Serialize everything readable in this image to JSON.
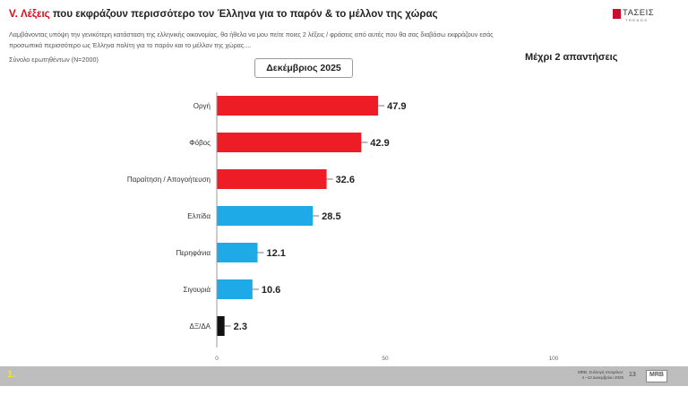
{
  "header": {
    "title_prefix": "V. Λέξεις",
    "title_rest": " που εκφράζουν περισσότερο τον Έλληνα για το παρόν & το μέλλον της χώρας",
    "description": "Λαμβάνοντας υπόψη την γενικότερη κατάσταση της ελληνικής οικονομίας, θα ήθελα να μου πείτε ποιες 2  λέξεις / φράσεις από αυτές που θα σας διαβάσω εκφράζουν εσάς προσωπικά περισσότερο ως Έλληνα πολίτη για το παρόν και το μέλλον της χώρας....",
    "sample": "Σύνολο ερωτηθέντων (Ν=2000)",
    "logo_text": "ΤΑΣΕΙΣ",
    "logo_sub": "TRENDS"
  },
  "period_label": "Δεκέμβριος 2025",
  "max_answers": "Μέχρι 2 απαντήσεις",
  "chart_data": {
    "type": "bar",
    "orientation": "horizontal",
    "categories": [
      "Οργή",
      "Φόβος",
      "Παραίτηση / Απογοήτευση",
      "Ελπίδα",
      "Περηφάνια",
      "Σιγουριά",
      "ΔΞ/ΔΑ"
    ],
    "values": [
      47.9,
      42.9,
      32.6,
      28.5,
      12.1,
      10.6,
      2.3
    ],
    "colors": [
      "#ee1c25",
      "#ee1c25",
      "#ee1c25",
      "#1eaae7",
      "#1eaae7",
      "#1eaae7",
      "#111111"
    ],
    "xlim": [
      0,
      100
    ],
    "xticks": [
      0,
      50,
      100
    ],
    "grid": false,
    "legend": "none"
  },
  "footer": {
    "page_label": "1.",
    "source_line1": "MRB, Συλλογή στοιχείων:",
    "source_line2": "4 –12 Δεκεμβρίου 2025",
    "slide_number": "13",
    "mrb_logo": "MRB"
  }
}
